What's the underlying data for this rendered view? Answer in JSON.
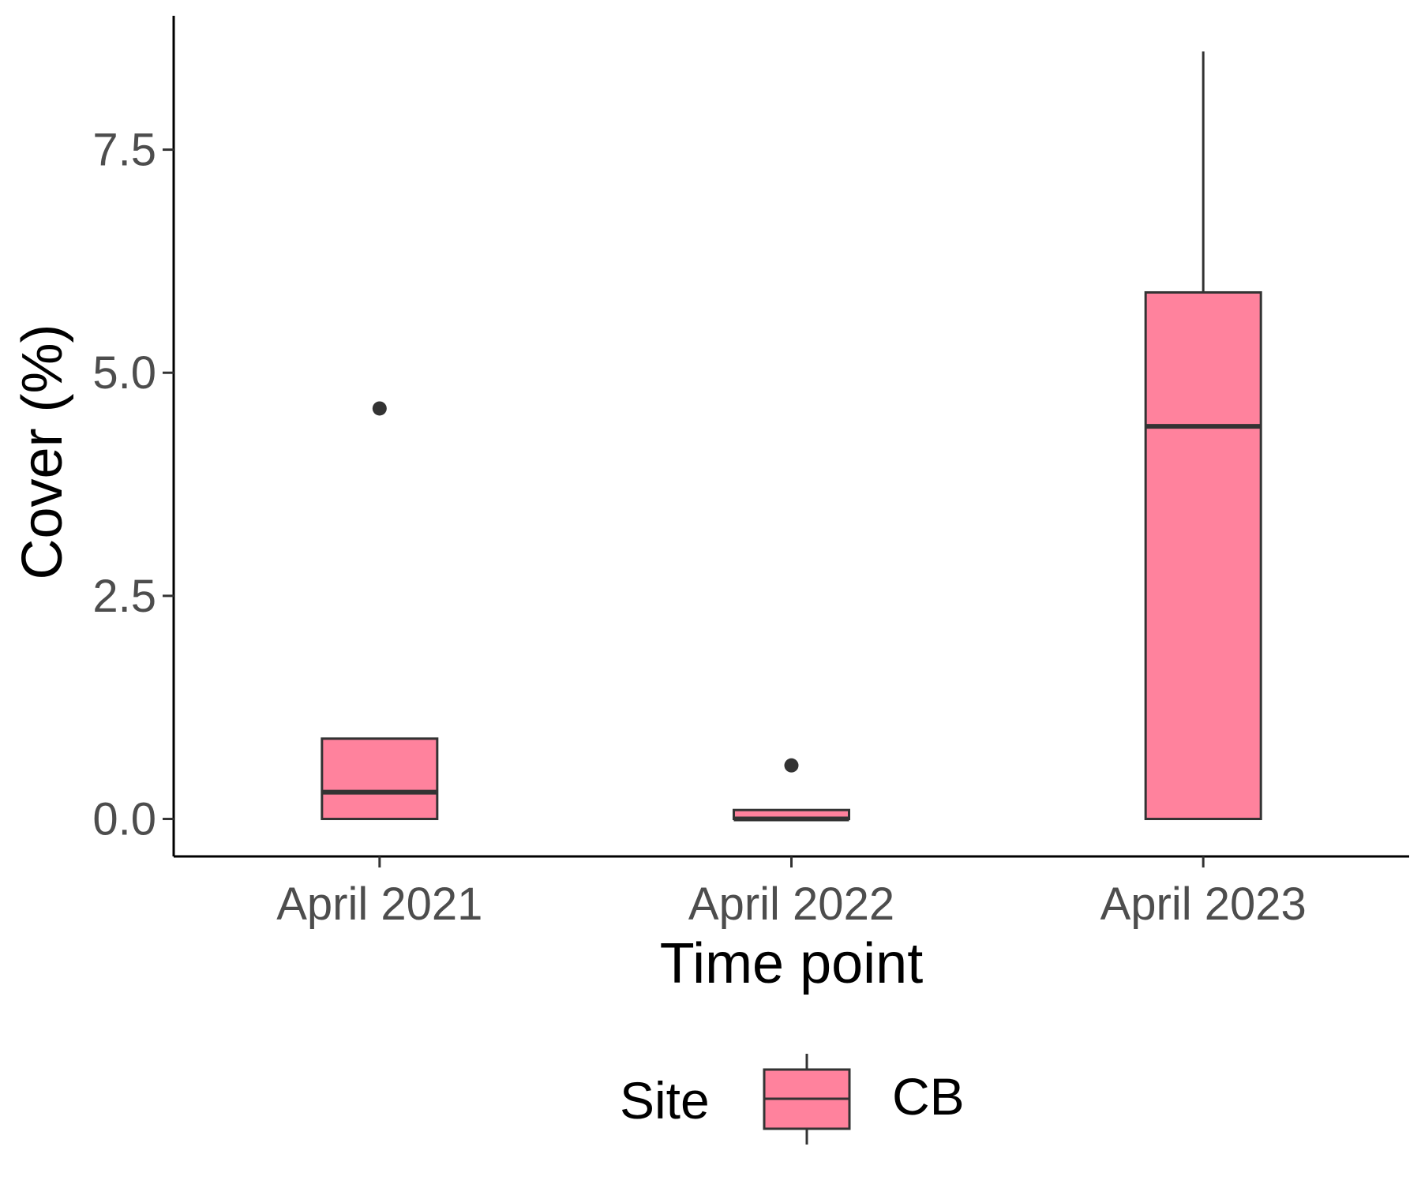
{
  "chart_data": {
    "type": "box",
    "categories": [
      "April 2021",
      "April 2022",
      "April 2023"
    ],
    "xlabel": "Time point",
    "ylabel": "Cover (%)",
    "ylim": [
      -0.42,
      9.0
    ],
    "yticks": [
      "0.0",
      "2.5",
      "5.0",
      "7.5"
    ],
    "grid": false,
    "legend": {
      "title": "Site",
      "position": "bottom",
      "entries": [
        "CB"
      ]
    },
    "series": [
      {
        "name": "CB",
        "boxes": [
          {
            "category": "April 2021",
            "q1": 0.0,
            "median": 0.3,
            "q3": 0.9,
            "whisker_low": 0.0,
            "whisker_high": 0.9,
            "outliers": [
              4.6
            ]
          },
          {
            "category": "April 2022",
            "q1": 0.0,
            "median": 0.0,
            "q3": 0.1,
            "whisker_low": 0.0,
            "whisker_high": 0.1,
            "outliers": [
              0.6
            ]
          },
          {
            "category": "April 2023",
            "q1": 0.0,
            "median": 4.4,
            "q3": 5.9,
            "whisker_low": 0.0,
            "whisker_high": 8.6,
            "outliers": []
          }
        ]
      }
    ],
    "colors": {
      "fill": "#FF829D",
      "stroke": "#333333",
      "axis": "#000000",
      "tick_label": "#4d4d4d"
    }
  }
}
